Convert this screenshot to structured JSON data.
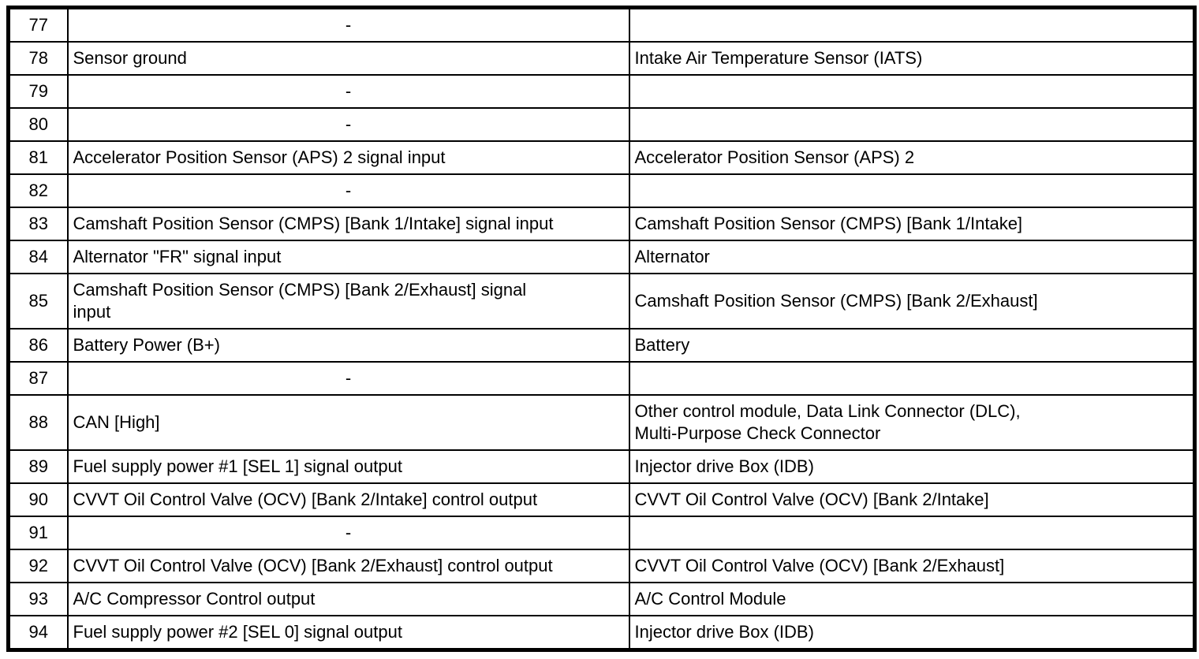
{
  "table": {
    "description": "ECM connector pin function table (pins 77-94)",
    "rows": [
      {
        "pin": "77",
        "description": "-",
        "connected_to": ""
      },
      {
        "pin": "78",
        "description": "Sensor ground",
        "connected_to": "Intake Air Temperature Sensor (IATS)"
      },
      {
        "pin": "79",
        "description": "-",
        "connected_to": ""
      },
      {
        "pin": "80",
        "description": "-",
        "connected_to": ""
      },
      {
        "pin": "81",
        "description": "Accelerator Position Sensor (APS) 2 signal input",
        "connected_to": "Accelerator Position Sensor (APS) 2"
      },
      {
        "pin": "82",
        "description": "-",
        "connected_to": ""
      },
      {
        "pin": "83",
        "description": "Camshaft Position Sensor (CMPS) [Bank 1/Intake] signal input",
        "connected_to": "Camshaft Position Sensor (CMPS) [Bank 1/Intake]"
      },
      {
        "pin": "84",
        "description": "Alternator \"FR\" signal input",
        "connected_to": "Alternator"
      },
      {
        "pin": "85",
        "description": "Camshaft Position Sensor (CMPS) [Bank 2/Exhaust] signal\ninput",
        "connected_to": "Camshaft Position Sensor (CMPS) [Bank 2/Exhaust]"
      },
      {
        "pin": "86",
        "description": "Battery Power (B+)",
        "connected_to": "Battery"
      },
      {
        "pin": "87",
        "description": "-",
        "connected_to": ""
      },
      {
        "pin": "88",
        "description": "CAN [High]",
        "connected_to": "Other control module, Data Link Connector (DLC),\nMulti-Purpose Check Connector"
      },
      {
        "pin": "89",
        "description": "Fuel supply power #1 [SEL 1] signal output",
        "connected_to": "Injector drive Box (IDB)"
      },
      {
        "pin": "90",
        "description": "CVVT Oil Control Valve (OCV) [Bank 2/Intake] control output",
        "connected_to": "CVVT Oil Control Valve (OCV) [Bank 2/Intake]"
      },
      {
        "pin": "91",
        "description": "-",
        "connected_to": ""
      },
      {
        "pin": "92",
        "description": "CVVT Oil Control Valve (OCV) [Bank 2/Exhaust] control output",
        "connected_to": "CVVT Oil Control Valve (OCV) [Bank 2/Exhaust]"
      },
      {
        "pin": "93",
        "description": "A/C Compressor Control output",
        "connected_to": "A/C Control Module"
      },
      {
        "pin": "94",
        "description": "Fuel supply power #2 [SEL 0] signal output",
        "connected_to": "Injector drive Box (IDB)"
      }
    ]
  }
}
